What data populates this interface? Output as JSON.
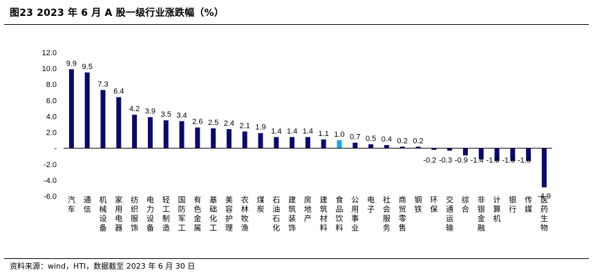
{
  "figure": {
    "title": "图23 2023 年 6 月 A 股一级行业涨跌幅（%）",
    "source": "资料来源：wind，HTI，数据截至 2023 年 6 月 30 日"
  },
  "colors": {
    "bar": "#0a0a6e",
    "highlight": "#1aa3f0",
    "axis": "#000000"
  },
  "chart_data": {
    "type": "bar",
    "title": "",
    "xlabel": "",
    "ylabel": "",
    "ylim": [
      -6.0,
      12.0
    ],
    "yticks": [
      12.0,
      10.0,
      8.0,
      6.0,
      4.0,
      2.0,
      0,
      -2.0,
      -4.0,
      -6.0
    ],
    "ytick_labels": [
      "12.0",
      "10.0",
      "8.0",
      "6.0",
      "4.0",
      "2.0",
      "-",
      "-2.0",
      "-4.0",
      "-6.0"
    ],
    "highlight_category": "食品饮料",
    "categories": [
      "汽车",
      "通信",
      "机械设备",
      "家用电器",
      "纺织服饰",
      "电力设备",
      "轻工制造",
      "国防军工",
      "有色金属",
      "基础化工",
      "美容护理",
      "农林牧渔",
      "煤炭",
      "石油石化",
      "建筑装饰",
      "房地产",
      "建筑材料",
      "食品饮料",
      "公用事业",
      "电子",
      "社会服务",
      "商贸零售",
      "钢铁",
      "环保",
      "交通运输",
      "综合",
      "非银金融",
      "计算机",
      "银行",
      "传媒",
      "医药生物"
    ],
    "values": [
      9.9,
      9.5,
      7.3,
      6.4,
      4.2,
      3.9,
      3.5,
      3.4,
      2.6,
      2.5,
      2.4,
      2.1,
      1.9,
      1.4,
      1.4,
      1.4,
      1.1,
      1.0,
      0.7,
      0.5,
      0.4,
      0.2,
      0.2,
      -0.2,
      -0.3,
      -0.9,
      -1.4,
      -1.6,
      -1.6,
      -1.6,
      -4.9
    ],
    "value_labels": [
      "9.9",
      "9.5",
      "7.3",
      "6.4",
      "4.2",
      "3.9",
      "3.5",
      "3.4",
      "2.6",
      "2.5",
      "2.4",
      "2.1",
      "1.9",
      "1.4",
      "1.4",
      "1.4",
      "1.1",
      "1.0",
      "0.7",
      "0.5",
      "0.4",
      "0.2",
      "0.2",
      "-0.2",
      "-0.3",
      "-0.9",
      "-1.4",
      "-1.6",
      "-1.6",
      "-1.6",
      "-4.9"
    ],
    "grid": false,
    "legend": "none"
  }
}
